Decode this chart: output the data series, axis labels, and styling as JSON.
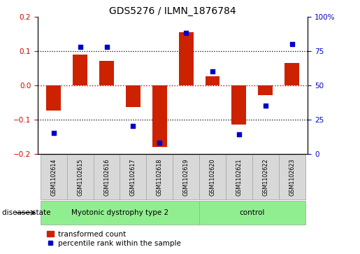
{
  "title": "GDS5276 / ILMN_1876784",
  "samples": [
    "GSM1102614",
    "GSM1102615",
    "GSM1102616",
    "GSM1102617",
    "GSM1102618",
    "GSM1102619",
    "GSM1102620",
    "GSM1102621",
    "GSM1102622",
    "GSM1102623"
  ],
  "transformed_count": [
    -0.075,
    0.09,
    0.07,
    -0.065,
    -0.18,
    0.155,
    0.025,
    -0.115,
    -0.03,
    0.065
  ],
  "percentile_rank": [
    15,
    78,
    78,
    20,
    8,
    88,
    60,
    14,
    35,
    80
  ],
  "group_labels": [
    "Myotonic dystrophy type 2",
    "control"
  ],
  "group_starts": [
    0,
    6
  ],
  "group_ends": [
    6,
    10
  ],
  "group_color": "#90EE90",
  "ylim_left": [
    -0.2,
    0.2
  ],
  "ylim_right": [
    0,
    100
  ],
  "yticks_left": [
    -0.2,
    -0.1,
    0.0,
    0.1,
    0.2
  ],
  "yticks_right": [
    0,
    25,
    50,
    75,
    100
  ],
  "ytick_right_labels": [
    "0",
    "25",
    "50",
    "75",
    "100%"
  ],
  "ylabel_left_color": "#cc0000",
  "ylabel_right_color": "#0000cc",
  "bar_color": "#cc2200",
  "dot_color": "#0000cc",
  "legend_bar_label": "transformed count",
  "legend_dot_label": "percentile rank within the sample",
  "disease_state_label": "disease state",
  "hline0_color": "#cc0000",
  "hline_pm_color": "black",
  "box_color": "#d8d8d8",
  "plot_bg": "white"
}
